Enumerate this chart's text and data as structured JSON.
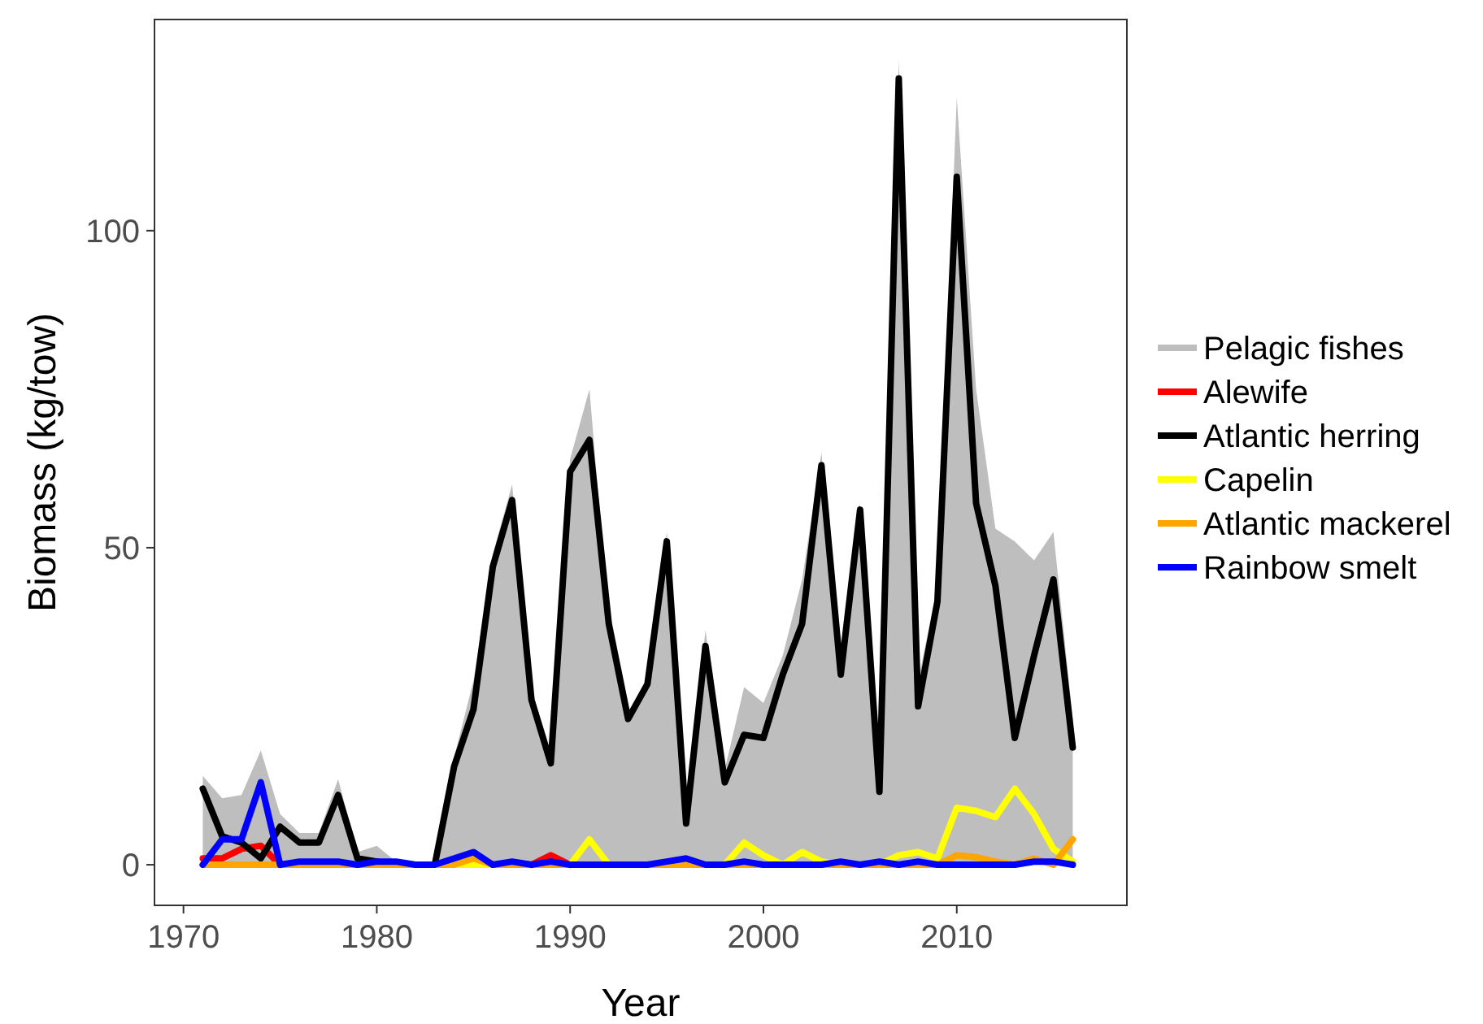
{
  "chart_data": {
    "type": "line",
    "xlabel": "Year",
    "ylabel": "Biomass (kg/tow)",
    "x": [
      1971,
      1972,
      1973,
      1974,
      1975,
      1976,
      1977,
      1978,
      1979,
      1980,
      1981,
      1982,
      1983,
      1984,
      1985,
      1986,
      1987,
      1988,
      1989,
      1990,
      1991,
      1992,
      1993,
      1994,
      1995,
      1996,
      1997,
      1998,
      1999,
      2000,
      2001,
      2002,
      2003,
      2004,
      2005,
      2006,
      2007,
      2008,
      2009,
      2010,
      2011,
      2012,
      2013,
      2014,
      2015,
      2016
    ],
    "series": [
      {
        "name": "Pelagic fishes",
        "type": "area",
        "color": "#bebebe",
        "values": [
          14,
          10.5,
          11,
          18,
          8,
          5,
          5,
          13.5,
          2,
          3,
          0.5,
          0.5,
          0.5,
          17,
          29,
          49,
          60,
          28,
          16.5,
          64,
          75,
          38.5,
          24,
          29,
          52.5,
          8,
          37,
          15,
          28,
          25.5,
          33,
          45,
          65,
          32,
          57,
          12,
          127,
          29,
          44,
          121,
          75,
          53,
          51,
          48,
          52.5,
          23
        ]
      },
      {
        "name": "Alewife",
        "color": "#ff0000",
        "values": [
          1,
          1,
          2.5,
          3,
          0,
          null,
          null,
          null,
          null,
          null,
          null,
          null,
          null,
          null,
          null,
          null,
          null,
          0,
          1.5,
          0,
          null,
          null,
          null,
          null,
          null,
          null,
          null,
          null,
          null,
          null,
          null,
          null,
          null,
          null,
          null,
          null,
          null,
          null,
          null,
          null,
          null,
          null,
          null,
          null,
          null,
          null
        ]
      },
      {
        "name": "Atlantic herring",
        "color": "#000000",
        "values": [
          12,
          4.5,
          3.5,
          1,
          6,
          3.5,
          3.5,
          11,
          1,
          0.5,
          0,
          0,
          0,
          15.5,
          24.5,
          47,
          57.5,
          26,
          16,
          62,
          67,
          38,
          23,
          28.5,
          51,
          6.5,
          34.5,
          13,
          20.5,
          20,
          30,
          38,
          63,
          30,
          56,
          11.5,
          124,
          25,
          41.5,
          108.5,
          57,
          44,
          20,
          33,
          45,
          18.5
        ]
      },
      {
        "name": "Capelin",
        "color": "#ffff00",
        "values": [
          null,
          null,
          null,
          null,
          null,
          null,
          null,
          null,
          null,
          null,
          null,
          null,
          0,
          0,
          0,
          0,
          0,
          0,
          0,
          0,
          4,
          0,
          0,
          0,
          0,
          1,
          0,
          0,
          3.5,
          1.5,
          0,
          2,
          0.5,
          0,
          0,
          0,
          1.5,
          2,
          1,
          9,
          8.5,
          7.5,
          12,
          8,
          2.5,
          0.5
        ]
      },
      {
        "name": "Atlantic mackerel",
        "color": "#ffa500",
        "values": [
          0,
          0,
          0,
          0,
          0,
          0,
          0,
          0,
          0,
          0,
          0,
          0,
          0,
          0,
          1,
          0,
          0,
          0,
          0,
          0,
          0,
          0,
          0,
          0,
          0,
          0,
          0,
          0,
          0,
          0,
          0,
          0,
          0,
          0,
          0,
          0,
          0,
          0,
          0,
          1.5,
          1.2,
          0.5,
          0,
          1,
          0,
          4
        ]
      },
      {
        "name": "Rainbow smelt",
        "color": "#0000ff",
        "values": [
          0,
          4,
          4,
          13,
          0,
          0.5,
          0.5,
          0.5,
          0,
          0.5,
          0.5,
          0,
          0,
          1,
          2,
          0,
          0.5,
          0,
          0.5,
          0,
          0,
          0,
          0,
          0,
          0.5,
          1,
          0,
          0,
          0.5,
          0,
          0,
          0,
          0,
          0.5,
          0,
          0.5,
          0,
          0.5,
          0,
          0,
          0,
          0,
          0,
          0.5,
          0.5,
          0
        ]
      }
    ],
    "xlim": [
      1968.5,
      2018.8
    ],
    "ylim": [
      -6.4,
      133.3
    ],
    "xticks": [
      1970,
      1980,
      1990,
      2000,
      2010
    ],
    "yticks": [
      0,
      50,
      100
    ],
    "grid": false,
    "legend": "right"
  }
}
